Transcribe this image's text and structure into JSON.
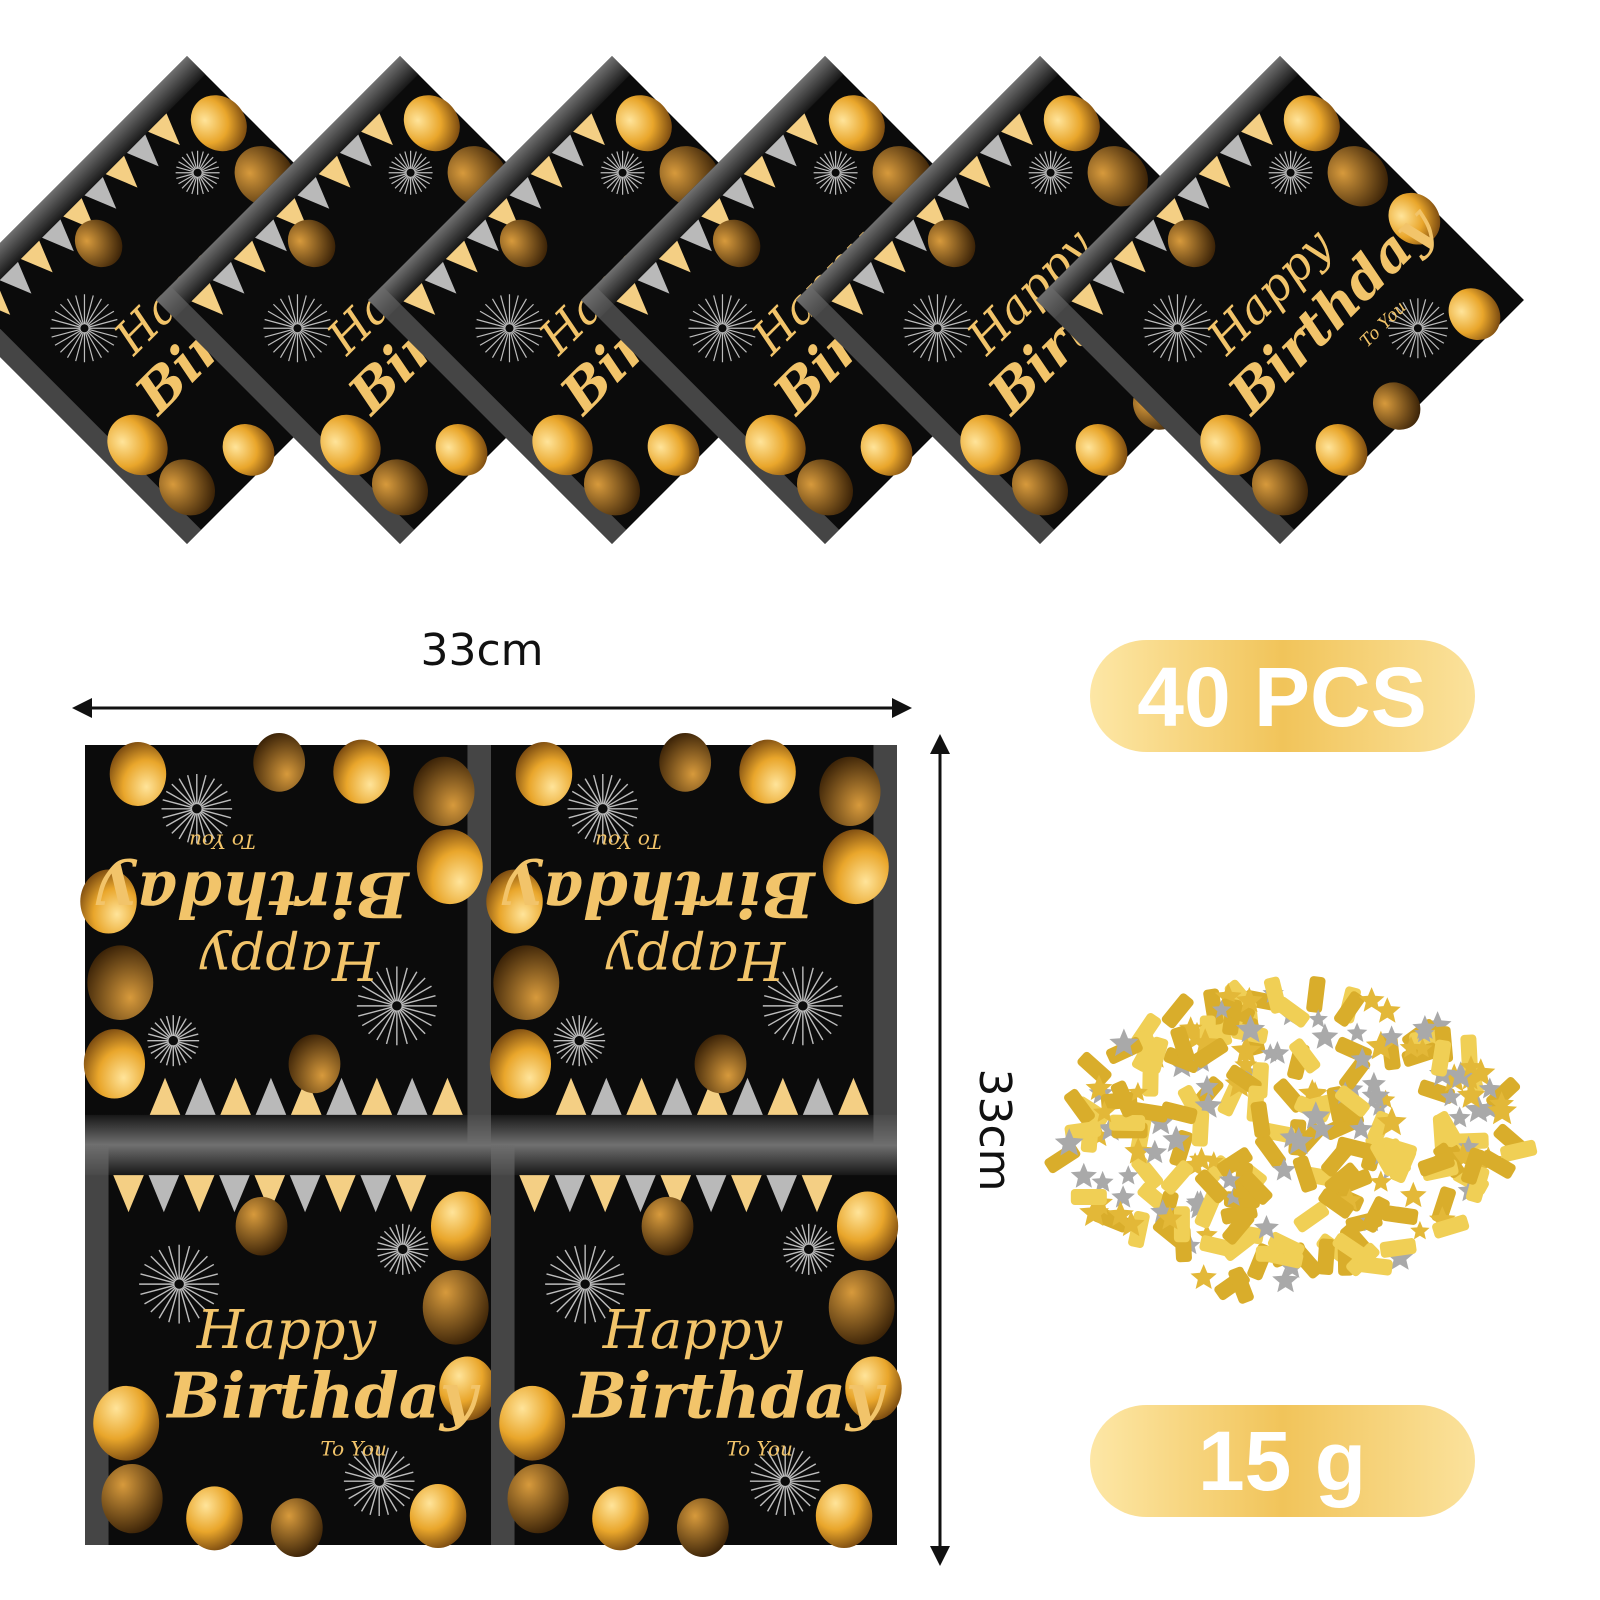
{
  "napkin": {
    "text": [
      "Happy",
      "Birthday",
      "To You"
    ]
  },
  "dimensions": {
    "width": "33cm",
    "height": "33cm"
  },
  "badges": [
    "40 PCS",
    "15 g"
  ]
}
